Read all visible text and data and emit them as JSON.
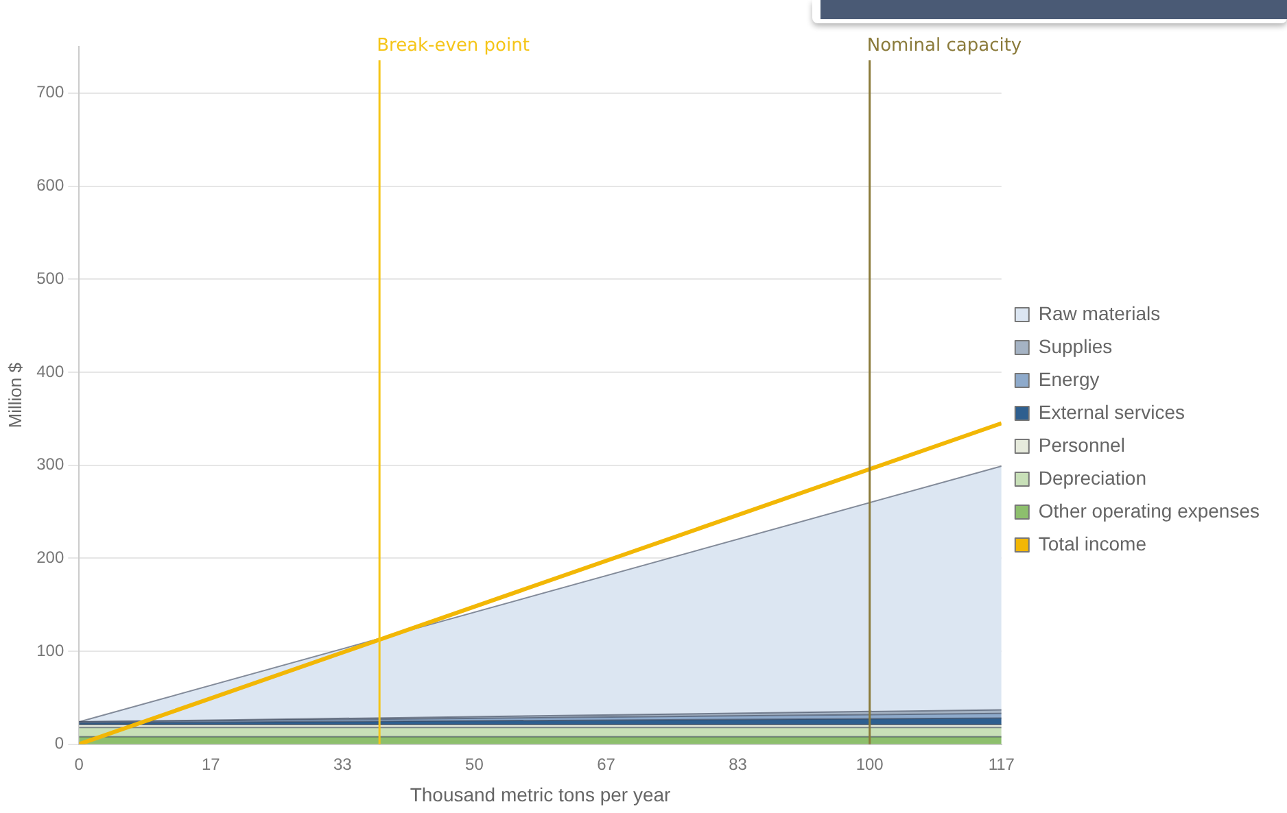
{
  "chart_data": {
    "type": "area",
    "stacked": true,
    "xlabel": "Thousand metric tons per year",
    "ylabel": "Million $",
    "x": [
      0,
      116.67
    ],
    "xlim": [
      0,
      116.67
    ],
    "xticks": [
      0,
      {
        "value": 16.67,
        "label": "17"
      },
      {
        "value": 33.33,
        "label": "33"
      },
      {
        "value": 50,
        "label": "50"
      },
      {
        "value": 66.67,
        "label": "67"
      },
      {
        "value": 83.33,
        "label": "83"
      },
      100,
      {
        "value": 116.67,
        "label": "117"
      }
    ],
    "ylim": [
      0,
      750
    ],
    "yticks": [
      0,
      100,
      200,
      300,
      400,
      500,
      600,
      700
    ],
    "grid": "y",
    "legend": "right",
    "series": [
      {
        "name": "Total income",
        "type": "line",
        "color": "#f2b705",
        "values": [
          0,
          345
        ]
      },
      {
        "name": "Other operating expenses",
        "color": "#8dbf6d",
        "values": [
          8,
          8
        ]
      },
      {
        "name": "Depreciation",
        "color": "#c8e0b8",
        "values": [
          10,
          10
        ]
      },
      {
        "name": "Personnel",
        "color": "#e6eadc",
        "values": [
          3,
          3
        ]
      },
      {
        "name": "External services",
        "color": "#2e5f8f",
        "values": [
          2,
          7
        ]
      },
      {
        "name": "Energy",
        "color": "#8eaacb",
        "values": [
          1,
          5
        ]
      },
      {
        "name": "Supplies",
        "color": "#a5b3c4",
        "values": [
          0,
          4
        ]
      },
      {
        "name": "Raw materials",
        "color": "#dce6f2",
        "values": [
          0,
          262
        ]
      }
    ],
    "ref_lines": [
      {
        "axis": "x",
        "value": 38,
        "label": "Break-even point",
        "color": "#f5c518"
      },
      {
        "axis": "x",
        "value": 100,
        "label": "Nominal capacity",
        "color": "#8a7a3a"
      }
    ]
  }
}
